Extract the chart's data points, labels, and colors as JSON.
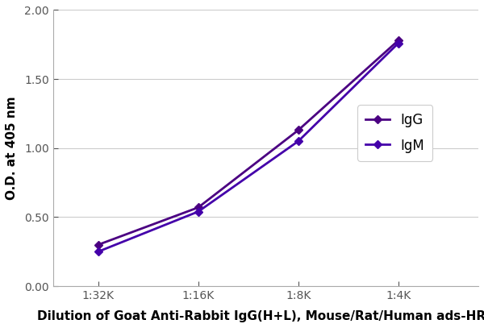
{
  "x_labels": [
    "1:32K",
    "1:16K",
    "1:8K",
    "1:4K"
  ],
  "x_positions": [
    1,
    2,
    3,
    4
  ],
  "IgG_values": [
    0.3,
    0.57,
    1.13,
    1.78
  ],
  "IgM_values": [
    0.25,
    0.54,
    1.05,
    1.76
  ],
  "line_color_IgG": "#4B0082",
  "line_color_IgM": "#4400AA",
  "marker_style": "D",
  "marker_size": 5,
  "line_width": 2.0,
  "ylabel": "O.D. at 405 nm",
  "xlabel": "Dilution of Goat Anti-Rabbit IgG(H+L), Mouse/Rat/Human ads-HRP",
  "ylim": [
    0.0,
    2.0
  ],
  "yticks": [
    0.0,
    0.5,
    1.0,
    1.5,
    2.0
  ],
  "legend_labels": [
    "IgG",
    "IgM"
  ],
  "background_color": "#ffffff",
  "grid_color": "#cccccc",
  "tick_fontsize": 10,
  "label_fontsize": 11,
  "xlabel_fontsize": 11,
  "legend_fontsize": 12
}
